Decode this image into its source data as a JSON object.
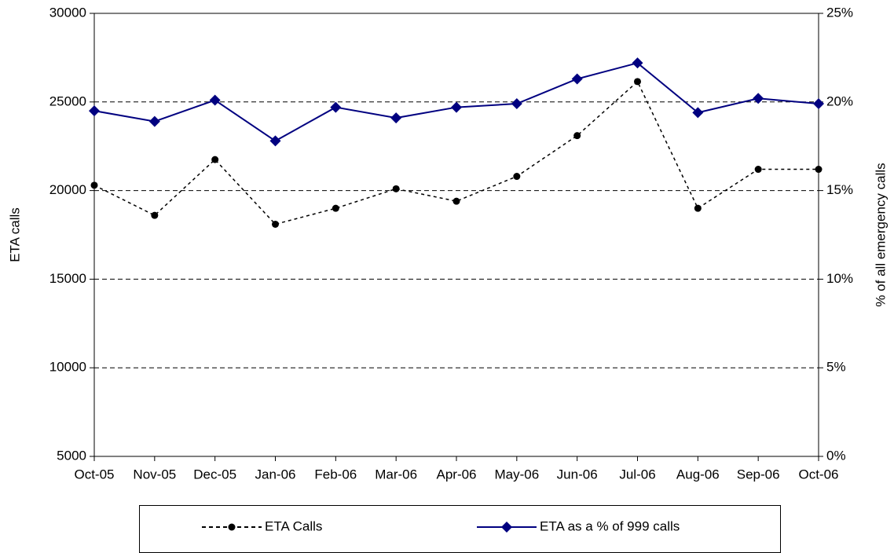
{
  "chart_data": {
    "type": "line",
    "categories": [
      "Oct-05",
      "Nov-05",
      "Dec-05",
      "Jan-06",
      "Feb-06",
      "Mar-06",
      "Apr-06",
      "May-06",
      "Jun-06",
      "Jul-06",
      "Aug-06",
      "Sep-06",
      "Oct-06"
    ],
    "series": [
      {
        "name": "ETA Calls",
        "color": "#000000",
        "dash": "dashed",
        "marker": "circle",
        "axis": "y",
        "values": [
          20300,
          18600,
          21750,
          18100,
          19000,
          20100,
          19400,
          20800,
          23100,
          26150,
          19000,
          21200,
          21200
        ]
      },
      {
        "name": "ETA as a % of 999 calls",
        "color": "#000080",
        "dash": "solid",
        "marker": "diamond",
        "axis": "y2",
        "values": [
          19.5,
          18.9,
          20.1,
          17.8,
          19.7,
          19.1,
          19.7,
          19.9,
          21.3,
          22.2,
          19.4,
          20.2,
          19.9
        ]
      }
    ],
    "ylabel": "ETA calls",
    "y2label": "% of all emergency calls",
    "ylim": [
      5000,
      30000
    ],
    "yticks": [
      5000,
      10000,
      15000,
      20000,
      25000,
      30000
    ],
    "y2lim": [
      0,
      25
    ],
    "y2ticks": [
      {
        "value": 0,
        "label": "0%"
      },
      {
        "value": 5,
        "label": "5%"
      },
      {
        "value": 10,
        "label": "10%"
      },
      {
        "value": 15,
        "label": "15%"
      },
      {
        "value": 20,
        "label": "20%"
      },
      {
        "value": 25,
        "label": "25%"
      }
    ],
    "grid": true,
    "legend": "bottom"
  }
}
